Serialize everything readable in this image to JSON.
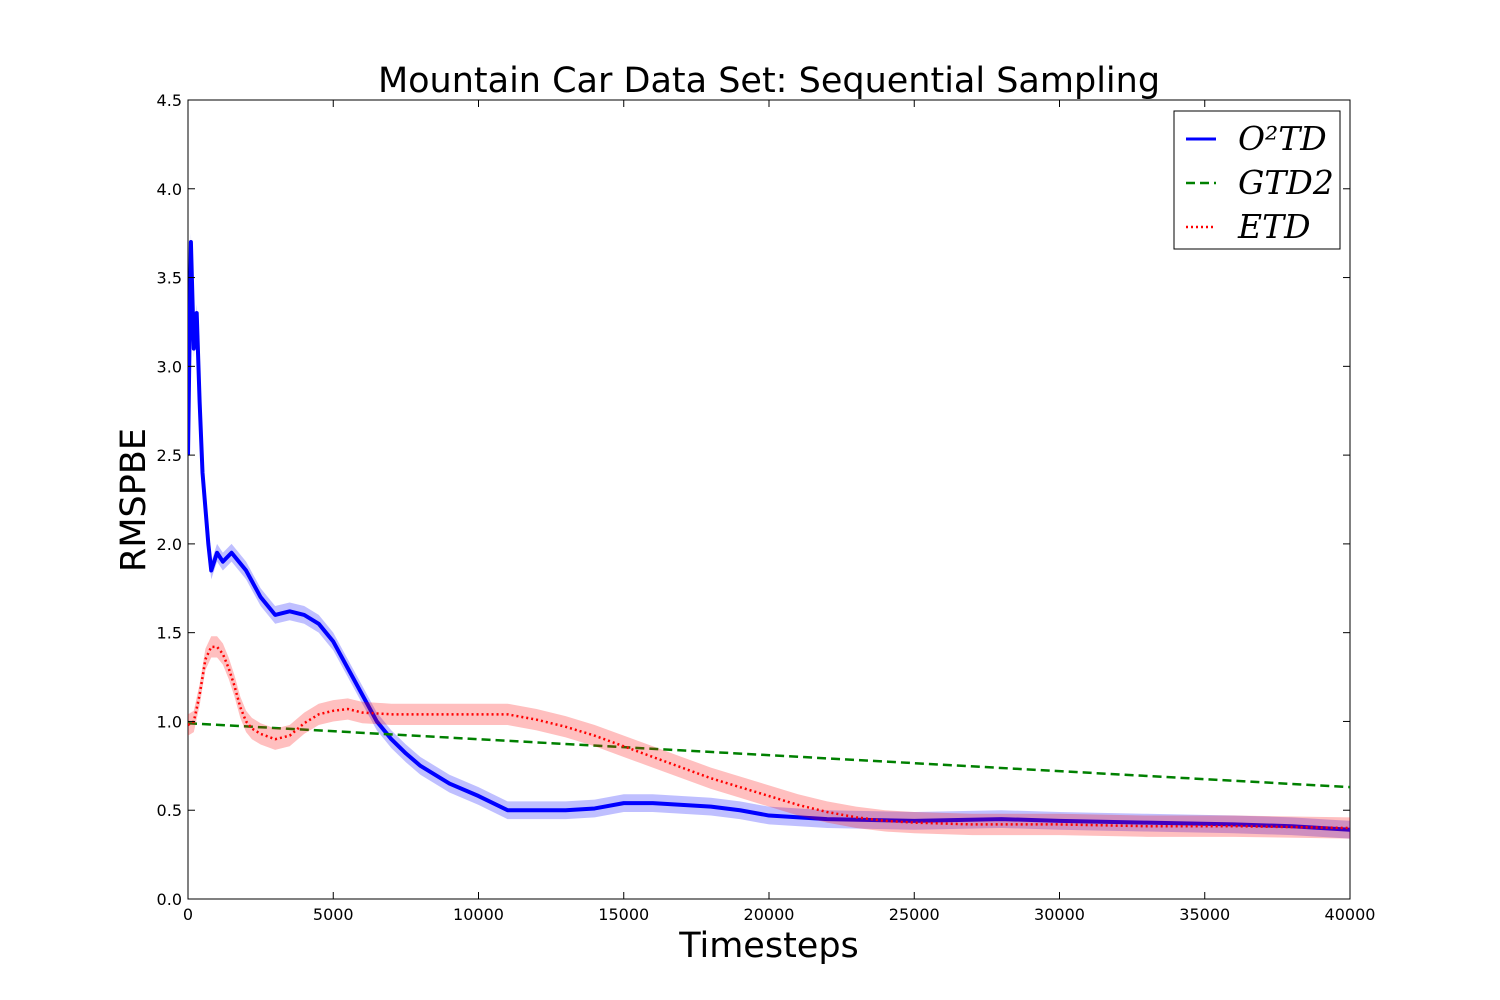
{
  "chart_data": {
    "type": "line",
    "title": "Mountain Car Data Set: Sequential Sampling",
    "xlabel": "Timesteps",
    "ylabel": "RMSPBE",
    "xlim": [
      0,
      40000
    ],
    "ylim": [
      0,
      4.5
    ],
    "xticks": [
      0,
      5000,
      10000,
      15000,
      20000,
      25000,
      30000,
      35000,
      40000
    ],
    "xtick_labels": [
      "0",
      "5000",
      "10000",
      "15000",
      "20000",
      "25000",
      "30000",
      "35000",
      "40000"
    ],
    "yticks": [
      0.0,
      0.5,
      1.0,
      1.5,
      2.0,
      2.5,
      3.0,
      3.5,
      4.0,
      4.5
    ],
    "ytick_labels": [
      "0.0",
      "0.5",
      "1.0",
      "1.5",
      "2.0",
      "2.5",
      "3.0",
      "3.5",
      "4.0",
      "4.5"
    ],
    "grid": false,
    "legend_position": "top-right",
    "series": [
      {
        "name": "O²TD",
        "color": "#0000ff",
        "style": "solid",
        "x": [
          0,
          100,
          200,
          300,
          400,
          500,
          600,
          700,
          800,
          1000,
          1200,
          1500,
          2000,
          2500,
          3000,
          3500,
          4000,
          4500,
          5000,
          5500,
          6000,
          6500,
          7000,
          7500,
          8000,
          8500,
          9000,
          10000,
          11000,
          12000,
          13000,
          14000,
          15000,
          16000,
          17000,
          18000,
          19000,
          20000,
          22000,
          25000,
          28000,
          30000,
          33000,
          36000,
          38000,
          40000
        ],
        "y": [
          2.5,
          3.7,
          3.1,
          3.3,
          2.8,
          2.4,
          2.2,
          2.0,
          1.85,
          1.95,
          1.9,
          1.95,
          1.85,
          1.7,
          1.6,
          1.62,
          1.6,
          1.55,
          1.45,
          1.3,
          1.15,
          1.0,
          0.9,
          0.82,
          0.75,
          0.7,
          0.65,
          0.58,
          0.5,
          0.5,
          0.5,
          0.51,
          0.54,
          0.54,
          0.53,
          0.52,
          0.5,
          0.47,
          0.45,
          0.44,
          0.45,
          0.44,
          0.43,
          0.42,
          0.41,
          0.39
        ],
        "band": 0.05
      },
      {
        "name": "GTD2",
        "color": "#008000",
        "style": "dashed",
        "x": [
          0,
          40000
        ],
        "y": [
          0.99,
          0.63
        ]
      },
      {
        "name": "ETD",
        "color": "#ff0000",
        "style": "dotted",
        "x": [
          0,
          200,
          400,
          600,
          800,
          1000,
          1200,
          1400,
          1600,
          1800,
          2000,
          2200,
          2500,
          3000,
          3500,
          4000,
          4500,
          5000,
          5500,
          6000,
          7000,
          8000,
          9000,
          10000,
          11000,
          12000,
          13000,
          14000,
          15000,
          16000,
          17000,
          18000,
          19000,
          20000,
          21000,
          22000,
          23000,
          24000,
          25000,
          27000,
          30000,
          33000,
          36000,
          40000
        ],
        "y": [
          0.98,
          1.0,
          1.15,
          1.35,
          1.42,
          1.42,
          1.38,
          1.3,
          1.2,
          1.08,
          1.0,
          0.96,
          0.93,
          0.9,
          0.92,
          0.99,
          1.04,
          1.06,
          1.07,
          1.05,
          1.04,
          1.04,
          1.04,
          1.04,
          1.04,
          1.01,
          0.97,
          0.92,
          0.86,
          0.8,
          0.74,
          0.68,
          0.63,
          0.58,
          0.53,
          0.49,
          0.46,
          0.44,
          0.43,
          0.42,
          0.42,
          0.41,
          0.41,
          0.4
        ],
        "band": 0.06
      }
    ]
  }
}
